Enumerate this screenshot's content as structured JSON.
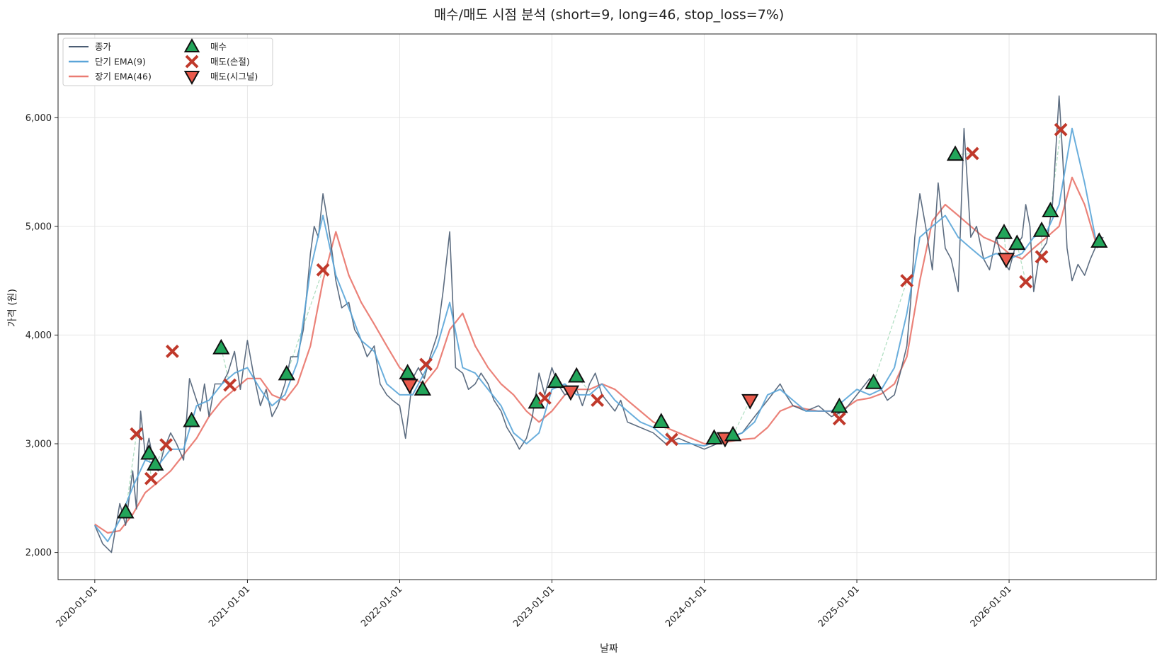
{
  "chart_data": {
    "type": "line",
    "title": "매수/매도 시점 분석 (short=9, long=46, stop_loss=7%)",
    "xlabel": "날짜",
    "ylabel": "가격 (원)",
    "x_ticks": [
      "2020-01-01",
      "2021-01-01",
      "2022-01-01",
      "2023-01-01",
      "2024-01-01",
      "2025-01-01",
      "2026-01-01"
    ],
    "y_ticks": [
      "2,000",
      "3,000",
      "4,000",
      "5,000",
      "6,000"
    ],
    "xlim": [
      "2019-10-05",
      "2026-12-20"
    ],
    "ylim": [
      1750,
      6770
    ],
    "grid": true,
    "legend_position": "top-left",
    "legend": {
      "close": "종가",
      "ema_short": "단기 EMA(9)",
      "ema_long": "장기 EMA(46)",
      "buy": "매수",
      "sell_stop": "매도(손절)",
      "sell_signal": "매도(시그널)"
    },
    "colors": {
      "close": "#4b5d73",
      "ema_short": "#5aa5d8",
      "ema_long": "#ea7b72",
      "buy": "#22a55a",
      "sell_stop": "#c0392b",
      "sell_signal": "#ea5a4c",
      "trade_link": "#9fd8b5"
    },
    "series": [
      {
        "name": "종가",
        "key": "close",
        "x": [
          "2020-01-01",
          "2020-01-20",
          "2020-02-10",
          "2020-03-01",
          "2020-03-15",
          "2020-04-01",
          "2020-04-10",
          "2020-04-20",
          "2020-05-01",
          "2020-05-10",
          "2020-05-20",
          "2020-06-01",
          "2020-06-15",
          "2020-07-01",
          "2020-07-15",
          "2020-08-01",
          "2020-08-15",
          "2020-09-01",
          "2020-09-10",
          "2020-09-20",
          "2020-10-01",
          "2020-10-15",
          "2020-11-01",
          "2020-11-15",
          "2020-12-01",
          "2020-12-15",
          "2021-01-01",
          "2021-01-15",
          "2021-02-01",
          "2021-02-15",
          "2021-03-01",
          "2021-03-15",
          "2021-04-01",
          "2021-04-15",
          "2021-05-01",
          "2021-05-15",
          "2021-06-01",
          "2021-06-10",
          "2021-06-20",
          "2021-07-01",
          "2021-07-10",
          "2021-07-20",
          "2021-08-01",
          "2021-08-15",
          "2021-09-01",
          "2021-09-15",
          "2021-10-01",
          "2021-10-15",
          "2021-11-01",
          "2021-11-15",
          "2021-12-01",
          "2021-12-15",
          "2022-01-01",
          "2022-01-15",
          "2022-02-01",
          "2022-02-15",
          "2022-03-01",
          "2022-03-15",
          "2022-04-01",
          "2022-04-15",
          "2022-05-01",
          "2022-05-15",
          "2022-06-01",
          "2022-06-15",
          "2022-07-01",
          "2022-07-15",
          "2022-08-01",
          "2022-08-15",
          "2022-09-01",
          "2022-09-15",
          "2022-10-01",
          "2022-10-15",
          "2022-11-01",
          "2022-11-15",
          "2022-12-01",
          "2022-12-15",
          "2023-01-01",
          "2023-01-15",
          "2023-02-01",
          "2023-03-01",
          "2023-03-15",
          "2023-04-01",
          "2023-04-15",
          "2023-05-01",
          "2023-06-01",
          "2023-06-15",
          "2023-07-01",
          "2023-08-01",
          "2023-09-01",
          "2023-10-01",
          "2023-11-01",
          "2023-12-01",
          "2024-01-01",
          "2024-02-01",
          "2024-03-01",
          "2024-04-01",
          "2024-05-01",
          "2024-06-01",
          "2024-07-01",
          "2024-07-15",
          "2024-08-01",
          "2024-09-01",
          "2024-10-01",
          "2024-11-01",
          "2024-12-01",
          "2025-01-01",
          "2025-02-01",
          "2025-03-01",
          "2025-03-15",
          "2025-04-01",
          "2025-04-15",
          "2025-05-01",
          "2025-05-10",
          "2025-05-20",
          "2025-06-01",
          "2025-06-15",
          "2025-07-01",
          "2025-07-15",
          "2025-08-01",
          "2025-08-15",
          "2025-09-01",
          "2025-09-15",
          "2025-10-01",
          "2025-10-15",
          "2025-11-01",
          "2025-11-15",
          "2025-12-01",
          "2025-12-15",
          "2026-01-01",
          "2026-01-15",
          "2026-02-01",
          "2026-02-10",
          "2026-02-20",
          "2026-03-01",
          "2026-03-15",
          "2026-04-01",
          "2026-04-15",
          "2026-05-01",
          "2026-05-10",
          "2026-05-20",
          "2026-06-01",
          "2026-06-15",
          "2026-07-01",
          "2026-07-15",
          "2026-08-01",
          "2026-08-15"
        ],
        "values": [
          2250,
          2080,
          2000,
          2450,
          2250,
          2750,
          2400,
          3300,
          2900,
          3050,
          2850,
          2750,
          2950,
          3100,
          3000,
          2850,
          3600,
          3400,
          3300,
          3550,
          3250,
          3550,
          3550,
          3650,
          3850,
          3500,
          3950,
          3650,
          3350,
          3500,
          3250,
          3350,
          3550,
          3800,
          3800,
          4050,
          4750,
          5000,
          4900,
          5300,
          5100,
          4850,
          4500,
          4250,
          4300,
          4050,
          3950,
          3800,
          3900,
          3550,
          3450,
          3400,
          3350,
          3050,
          3600,
          3700,
          3600,
          3800,
          4000,
          4400,
          4950,
          3700,
          3650,
          3500,
          3550,
          3650,
          3550,
          3400,
          3300,
          3150,
          3050,
          2950,
          3050,
          3250,
          3650,
          3450,
          3700,
          3550,
          3450,
          3500,
          3350,
          3550,
          3650,
          3450,
          3300,
          3400,
          3200,
          3150,
          3100,
          3000,
          3050,
          3000,
          2950,
          3000,
          3050,
          3100,
          3250,
          3400,
          3550,
          3450,
          3350,
          3300,
          3350,
          3250,
          3300,
          3450,
          3600,
          3500,
          3400,
          3450,
          3650,
          3900,
          4300,
          4900,
          5300,
          5000,
          4600,
          5400,
          4800,
          4700,
          4400,
          5900,
          4900,
          5000,
          4700,
          4600,
          4900,
          4700,
          4600,
          4800,
          4900,
          5200,
          5000,
          4400,
          4750,
          4850,
          5200,
          6200,
          5600,
          4800,
          4500,
          4650,
          4550,
          4700,
          4850,
          4900
        ]
      },
      {
        "name": "단기 EMA(9)",
        "key": "ema_short",
        "x": [
          "2020-01-01",
          "2020-02-01",
          "2020-03-01",
          "2020-04-01",
          "2020-05-01",
          "2020-06-01",
          "2020-07-01",
          "2020-08-01",
          "2020-09-01",
          "2020-10-01",
          "2020-11-01",
          "2020-12-01",
          "2021-01-01",
          "2021-02-01",
          "2021-03-01",
          "2021-04-01",
          "2021-05-01",
          "2021-06-01",
          "2021-07-01",
          "2021-08-01",
          "2021-09-01",
          "2021-10-01",
          "2021-11-01",
          "2021-12-01",
          "2022-01-01",
          "2022-02-01",
          "2022-03-01",
          "2022-04-01",
          "2022-05-01",
          "2022-06-01",
          "2022-07-01",
          "2022-08-01",
          "2022-09-01",
          "2022-10-01",
          "2022-11-01",
          "2022-12-01",
          "2023-01-01",
          "2023-02-01",
          "2023-03-01",
          "2023-04-01",
          "2023-05-01",
          "2023-06-01",
          "2023-07-01",
          "2023-08-01",
          "2023-09-01",
          "2023-10-01",
          "2023-11-01",
          "2023-12-01",
          "2024-01-01",
          "2024-02-01",
          "2024-03-01",
          "2024-04-01",
          "2024-05-01",
          "2024-06-01",
          "2024-07-01",
          "2024-08-01",
          "2024-09-01",
          "2024-10-01",
          "2024-11-01",
          "2024-12-01",
          "2025-01-01",
          "2025-02-01",
          "2025-03-01",
          "2025-04-01",
          "2025-05-01",
          "2025-06-01",
          "2025-07-01",
          "2025-08-01",
          "2025-09-01",
          "2025-10-01",
          "2025-11-01",
          "2025-12-01",
          "2026-01-01",
          "2026-02-01",
          "2026-03-01",
          "2026-04-01",
          "2026-05-01",
          "2026-06-01",
          "2026-07-01",
          "2026-08-01"
        ],
        "values": [
          2250,
          2100,
          2300,
          2600,
          2850,
          2800,
          2950,
          2950,
          3350,
          3400,
          3550,
          3650,
          3700,
          3500,
          3350,
          3450,
          3750,
          4600,
          5100,
          4550,
          4250,
          3950,
          3850,
          3550,
          3450,
          3450,
          3650,
          3900,
          4300,
          3700,
          3650,
          3500,
          3350,
          3100,
          3000,
          3100,
          3500,
          3550,
          3450,
          3450,
          3550,
          3400,
          3300,
          3200,
          3150,
          3050,
          3000,
          3000,
          2980,
          3020,
          3060,
          3100,
          3200,
          3450,
          3500,
          3400,
          3300,
          3300,
          3300,
          3400,
          3500,
          3450,
          3500,
          3700,
          4200,
          4900,
          5000,
          5100,
          4900,
          4800,
          4700,
          4750,
          4700,
          4750,
          4900,
          4950,
          5200,
          5900,
          5400,
          4800
        ]
      },
      {
        "name": "장기 EMA(46)",
        "key": "ema_long",
        "x": [
          "2020-01-01",
          "2020-02-01",
          "2020-03-01",
          "2020-04-01",
          "2020-05-01",
          "2020-06-01",
          "2020-07-01",
          "2020-08-01",
          "2020-09-01",
          "2020-10-01",
          "2020-11-01",
          "2020-12-01",
          "2021-01-01",
          "2021-02-01",
          "2021-03-01",
          "2021-04-01",
          "2021-05-01",
          "2021-06-01",
          "2021-07-01",
          "2021-08-01",
          "2021-09-01",
          "2021-10-01",
          "2021-11-01",
          "2021-12-01",
          "2022-01-01",
          "2022-02-01",
          "2022-03-01",
          "2022-04-01",
          "2022-05-01",
          "2022-06-01",
          "2022-07-01",
          "2022-08-01",
          "2022-09-01",
          "2022-10-01",
          "2022-11-01",
          "2022-12-01",
          "2023-01-01",
          "2023-02-01",
          "2023-03-01",
          "2023-04-01",
          "2023-05-01",
          "2023-06-01",
          "2023-07-01",
          "2023-08-01",
          "2023-09-01",
          "2023-10-01",
          "2023-11-01",
          "2023-12-01",
          "2024-01-01",
          "2024-02-01",
          "2024-03-01",
          "2024-04-01",
          "2024-05-01",
          "2024-06-01",
          "2024-07-01",
          "2024-08-01",
          "2024-09-01",
          "2024-10-01",
          "2024-11-01",
          "2024-12-01",
          "2025-01-01",
          "2025-02-01",
          "2025-03-01",
          "2025-04-01",
          "2025-05-01",
          "2025-06-01",
          "2025-07-01",
          "2025-08-01",
          "2025-09-01",
          "2025-10-01",
          "2025-11-01",
          "2025-12-01",
          "2026-01-01",
          "2026-02-01",
          "2026-03-01",
          "2026-04-01",
          "2026-05-01",
          "2026-06-01",
          "2026-07-01",
          "2026-08-01"
        ],
        "values": [
          2260,
          2180,
          2200,
          2350,
          2550,
          2650,
          2750,
          2900,
          3050,
          3250,
          3400,
          3500,
          3600,
          3600,
          3450,
          3400,
          3550,
          3900,
          4500,
          4950,
          4550,
          4300,
          4100,
          3900,
          3700,
          3600,
          3550,
          3700,
          4050,
          4200,
          3900,
          3700,
          3550,
          3450,
          3300,
          3200,
          3300,
          3450,
          3500,
          3500,
          3550,
          3500,
          3400,
          3300,
          3200,
          3150,
          3100,
          3050,
          3000,
          3000,
          3020,
          3040,
          3050,
          3150,
          3300,
          3350,
          3320,
          3300,
          3300,
          3320,
          3400,
          3420,
          3460,
          3550,
          3800,
          4500,
          5050,
          5200,
          5100,
          5000,
          4900,
          4850,
          4750,
          4700,
          4800,
          4900,
          5000,
          5450,
          5200,
          4800
        ]
      }
    ],
    "markers": {
      "buy": [
        {
          "x": "2020-03-15",
          "y": 2370
        },
        {
          "x": "2020-05-10",
          "y": 2910
        },
        {
          "x": "2020-05-25",
          "y": 2810
        },
        {
          "x": "2020-08-20",
          "y": 3210
        },
        {
          "x": "2020-10-30",
          "y": 3880
        },
        {
          "x": "2021-04-05",
          "y": 3640
        },
        {
          "x": "2022-01-20",
          "y": 3650
        },
        {
          "x": "2022-02-25",
          "y": 3500
        },
        {
          "x": "2022-11-25",
          "y": 3380
        },
        {
          "x": "2023-01-10",
          "y": 3570
        },
        {
          "x": "2023-03-01",
          "y": 3620
        },
        {
          "x": "2023-09-20",
          "y": 3200
        },
        {
          "x": "2024-01-25",
          "y": 3050
        },
        {
          "x": "2024-03-10",
          "y": 3080
        },
        {
          "x": "2024-11-20",
          "y": 3340
        },
        {
          "x": "2025-02-10",
          "y": 3560
        },
        {
          "x": "2025-08-25",
          "y": 5660
        },
        {
          "x": "2025-12-20",
          "y": 4940
        },
        {
          "x": "2026-01-20",
          "y": 4840
        },
        {
          "x": "2026-03-20",
          "y": 4960
        },
        {
          "x": "2026-04-10",
          "y": 5140
        },
        {
          "x": "2026-08-05",
          "y": 4860
        }
      ],
      "sell_stop": [
        {
          "x": "2020-04-10",
          "y": 3090
        },
        {
          "x": "2020-05-15",
          "y": 2680
        },
        {
          "x": "2020-06-20",
          "y": 2990
        },
        {
          "x": "2020-07-05",
          "y": 3850
        },
        {
          "x": "2020-11-20",
          "y": 3540
        },
        {
          "x": "2021-07-01",
          "y": 4600
        },
        {
          "x": "2022-03-05",
          "y": 3730
        },
        {
          "x": "2022-12-15",
          "y": 3420
        },
        {
          "x": "2023-04-20",
          "y": 3400
        },
        {
          "x": "2023-10-15",
          "y": 3040
        },
        {
          "x": "2024-11-20",
          "y": 3230
        },
        {
          "x": "2025-05-01",
          "y": 4500
        },
        {
          "x": "2025-10-05",
          "y": 5670
        },
        {
          "x": "2026-02-10",
          "y": 4490
        },
        {
          "x": "2026-03-20",
          "y": 4720
        },
        {
          "x": "2026-05-05",
          "y": 5890
        }
      ],
      "sell_signal": [
        {
          "x": "2022-01-25",
          "y": 3540
        },
        {
          "x": "2023-02-15",
          "y": 3480
        },
        {
          "x": "2024-02-20",
          "y": 3050
        },
        {
          "x": "2024-04-20",
          "y": 3400
        },
        {
          "x": "2025-12-25",
          "y": 4700
        }
      ]
    }
  }
}
